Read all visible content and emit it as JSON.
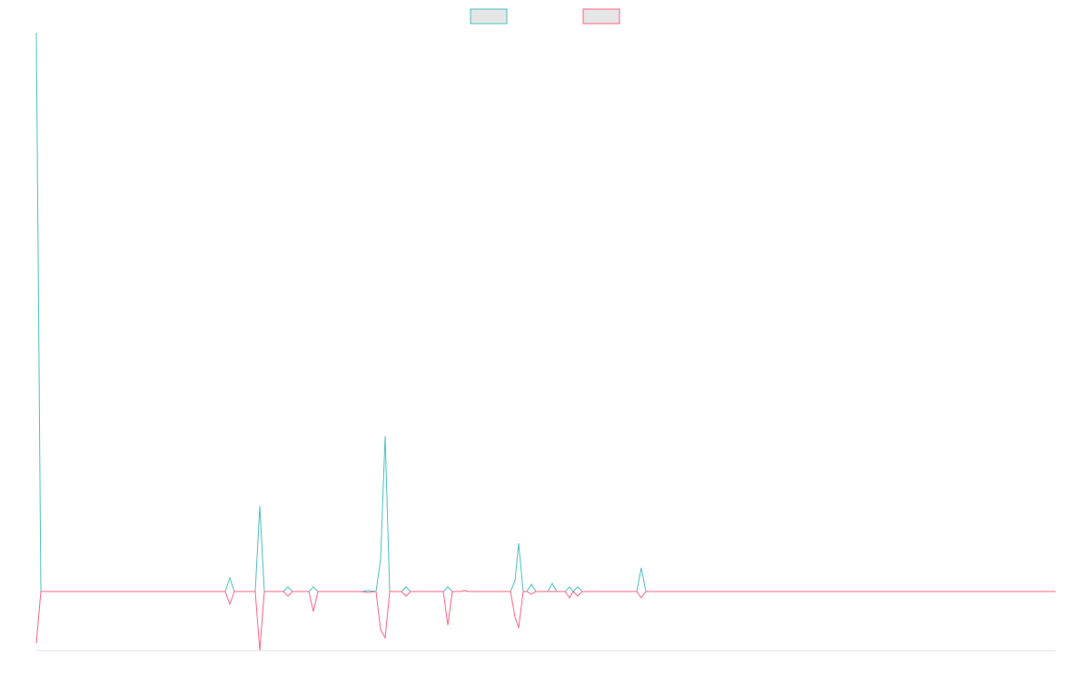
{
  "chart_data": {
    "type": "line",
    "x": [
      0,
      5,
      208,
      213,
      218,
      241,
      246,
      251,
      272,
      277,
      282,
      300,
      305,
      310,
      358,
      365,
      374,
      379,
      384,
      389,
      402,
      407,
      412,
      448,
      453,
      458,
      467,
      471,
      476,
      522,
      527,
      531,
      536,
      540,
      545,
      550,
      563,
      568,
      573,
      582,
      587,
      591,
      596,
      601,
      661,
      666,
      671,
      1122
    ],
    "series": [
      {
        "color": "#4bc0c0",
        "values": [
          61.5,
          0,
          0,
          1.5,
          0,
          0,
          9.4,
          0,
          0,
          0.5,
          0,
          0,
          0.5,
          0,
          0,
          0.1,
          0,
          3.6,
          17.1,
          0,
          0,
          0.5,
          0,
          0,
          0.5,
          0,
          0,
          0.1,
          0,
          0,
          1.2,
          5.3,
          0,
          0,
          0.8,
          0,
          0,
          0.9,
          0,
          0,
          0.5,
          0,
          0.5,
          0,
          0,
          2.6,
          0,
          0
        ]
      },
      {
        "color": "#ff6384",
        "values": [
          -5.7,
          0,
          0,
          -1.4,
          0,
          0,
          -6.5,
          0,
          0,
          -0.5,
          0,
          0,
          -2.2,
          0,
          0,
          -0.1,
          0,
          -4.2,
          -5.1,
          0,
          0,
          -0.5,
          0,
          0,
          -3.7,
          0,
          0,
          0.1,
          0,
          0,
          -2.8,
          -4.0,
          0,
          0,
          -0.3,
          0,
          0,
          0,
          0,
          0,
          -0.7,
          0,
          -0.5,
          0,
          0,
          -0.7,
          0,
          0
        ]
      }
    ],
    "xlim": [
      0,
      1122
    ],
    "ylim": [
      -6.5,
      61.5
    ],
    "legend": "top"
  }
}
